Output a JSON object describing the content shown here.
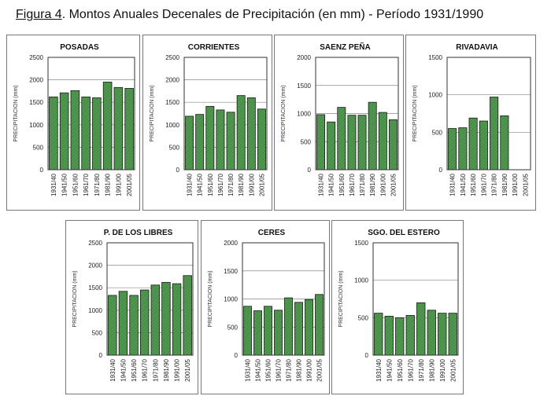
{
  "figure": {
    "label": "Figura 4",
    "caption": ". Montos Anuales Decenales de Precipitación (en mm) - Período 1931/1990"
  },
  "colors": {
    "bar": "#4f9a4f",
    "bar_hatch": "#2f6a2f",
    "grid": "#888888",
    "axis": "#333333"
  },
  "chart_data": [
    {
      "type": "bar",
      "title": "POSADAS",
      "ylabel": "PRECIPITACION (mm)",
      "ylim": [
        0,
        2500
      ],
      "yticks": [
        0,
        500,
        1000,
        1500,
        2000,
        2500
      ],
      "categories": [
        "1931/40",
        "1941/50",
        "1951/60",
        "1961/70",
        "1971/80",
        "1981/90",
        "1991/00",
        "2001/05"
      ],
      "values": [
        1620,
        1710,
        1760,
        1620,
        1600,
        1950,
        1830,
        1810
      ]
    },
    {
      "type": "bar",
      "title": "CORRIENTES",
      "ylabel": "PRECIPITACION (mm)",
      "ylim": [
        0,
        2500
      ],
      "yticks": [
        0,
        500,
        1000,
        1500,
        2000,
        2500
      ],
      "categories": [
        "1931/40",
        "1941/50",
        "1951/60",
        "1961/70",
        "1971/80",
        "1981/90",
        "1991/00",
        "2001/05"
      ],
      "values": [
        1190,
        1230,
        1410,
        1330,
        1280,
        1650,
        1600,
        1350
      ]
    },
    {
      "type": "bar",
      "title": "SAENZ PEÑA",
      "ylabel": "PRECIPITACION (mm)",
      "ylim": [
        0,
        2000
      ],
      "yticks": [
        0,
        500,
        1000,
        1500,
        2000
      ],
      "categories": [
        "1931/40",
        "1941/50",
        "1951/60",
        "1961/70",
        "1971/80",
        "1981/90",
        "1991/00",
        "2001/05"
      ],
      "values": [
        980,
        850,
        1110,
        970,
        970,
        1200,
        1020,
        890
      ]
    },
    {
      "type": "bar",
      "title": "RIVADAVIA",
      "ylabel": "PRECIPITACION (mm)",
      "ylim": [
        0,
        1500
      ],
      "yticks": [
        0,
        500,
        1000,
        1500
      ],
      "categories": [
        "1931/40",
        "1941/50",
        "1951/60",
        "1961/70",
        "1971/80",
        "1981/90",
        "1991/00",
        "2001/05"
      ],
      "values": [
        550,
        560,
        690,
        650,
        970,
        720,
        null,
        null
      ]
    },
    {
      "type": "bar",
      "title": "P. DE LOS LIBRES",
      "ylabel": "PRECIPITACION (mm)",
      "ylim": [
        0,
        2500
      ],
      "yticks": [
        0,
        500,
        1000,
        1500,
        2000,
        2500
      ],
      "categories": [
        "1931/40",
        "1941/50",
        "1951/60",
        "1961/70",
        "1971/80",
        "1981/90",
        "1991/00",
        "2001/05"
      ],
      "values": [
        1330,
        1420,
        1330,
        1450,
        1560,
        1620,
        1590,
        1770
      ]
    },
    {
      "type": "bar",
      "title": "CERES",
      "ylabel": "PRECIPITACION (mm)",
      "ylim": [
        0,
        2000
      ],
      "yticks": [
        0,
        500,
        1000,
        1500,
        2000
      ],
      "categories": [
        "1931/40",
        "1941/50",
        "1951/60",
        "1961/70",
        "1971/80",
        "1981/90",
        "1991/00",
        "2001/05"
      ],
      "values": [
        870,
        790,
        870,
        800,
        1020,
        940,
        990,
        1080
      ]
    },
    {
      "type": "bar",
      "title": "SGO. DEL ESTERO",
      "ylabel": "PRECIPITACION (mm)",
      "ylim": [
        0,
        1500
      ],
      "yticks": [
        0,
        500,
        1000,
        1500
      ],
      "categories": [
        "1931/40",
        "1941/50",
        "1951/60",
        "1961/70",
        "1971/80",
        "1981/90",
        "1991/00",
        "2001/05"
      ],
      "values": [
        560,
        520,
        500,
        530,
        700,
        600,
        560,
        560
      ]
    }
  ]
}
